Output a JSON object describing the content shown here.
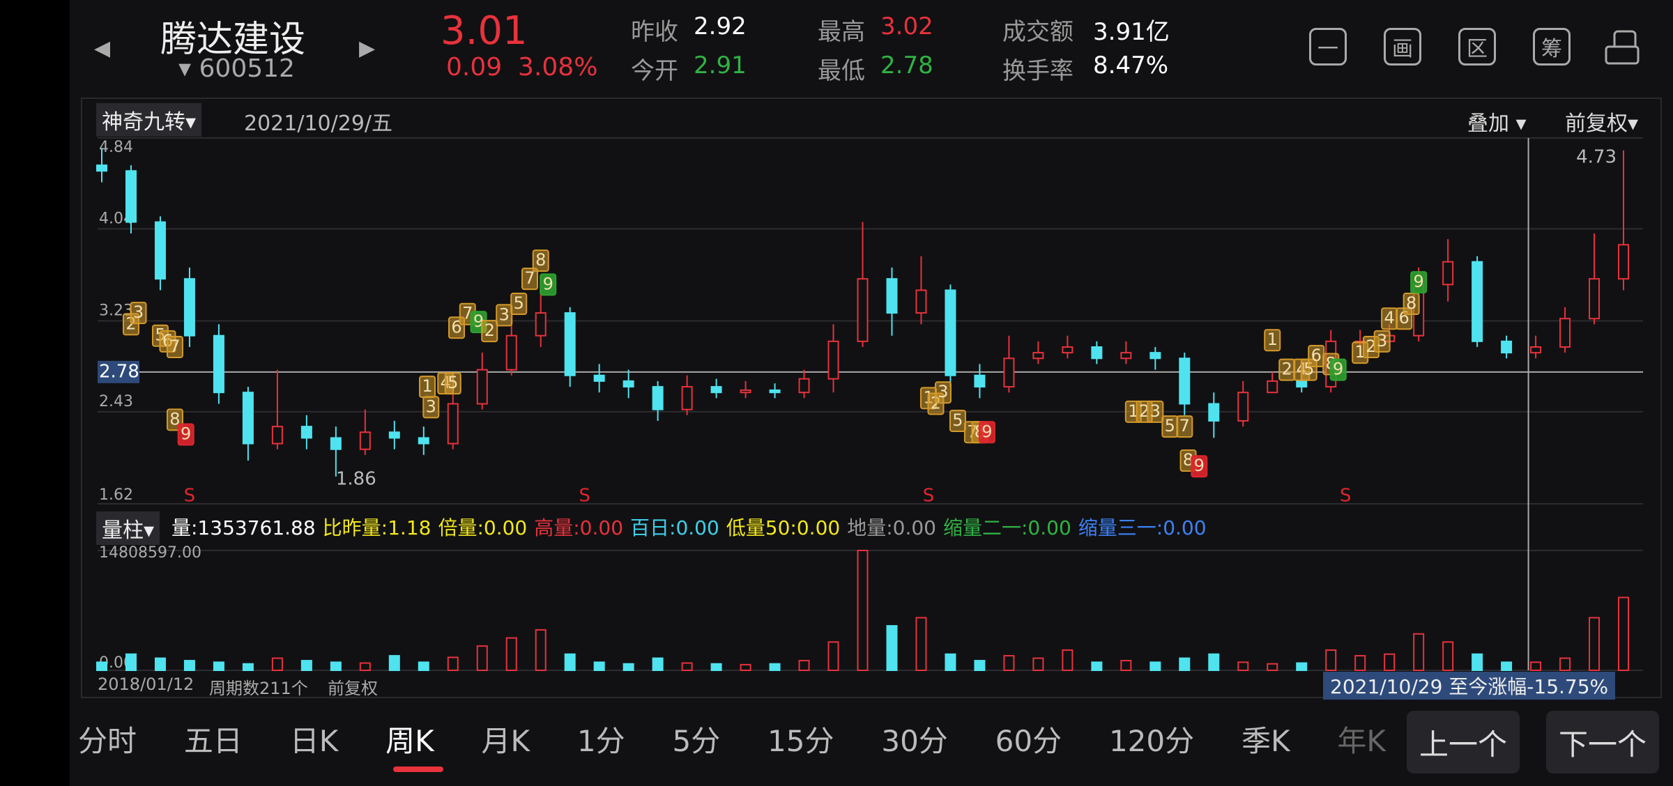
{
  "header": {
    "name": "腾达建设",
    "code": "600512",
    "price": "3.01",
    "change": "0.09",
    "change_pct": "3.08%",
    "stats": [
      {
        "label": "昨收",
        "value": "2.92",
        "color": "#ffffff"
      },
      {
        "label": "今开",
        "value": "2.91",
        "color": "#2fb344"
      },
      {
        "label": "最高",
        "value": "3.02",
        "color": "#e8323c"
      },
      {
        "label": "最低",
        "value": "2.78",
        "color": "#2fb344"
      },
      {
        "label": "成交额",
        "value": "3.91亿",
        "color": "#ffffff"
      },
      {
        "label": "换手率",
        "value": "8.47%",
        "color": "#ffffff"
      }
    ],
    "icons": [
      "一",
      "画",
      "区",
      "筹"
    ]
  },
  "toolbar": {
    "indicator": "神奇九转",
    "date": "2021/10/29/五",
    "overlay": "叠加",
    "adjust": "前复权"
  },
  "chart_data": [
    {
      "type": "candlestick",
      "up_color": "#e8323c",
      "down_color": "#4fe3ef",
      "xlim": [
        0,
        210
      ],
      "ylim": [
        1.62,
        4.84
      ],
      "yticks": [
        4.84,
        4.04,
        3.23,
        2.43,
        1.62
      ],
      "grid": true,
      "x": [
        0,
        4,
        8,
        12,
        16,
        20,
        24,
        28,
        32,
        36,
        40,
        44,
        48,
        52,
        56,
        60,
        64,
        68,
        72,
        76,
        80,
        84,
        88,
        92,
        96,
        100,
        104,
        108,
        112,
        116,
        120,
        124,
        128,
        132,
        136,
        140,
        144,
        148,
        152,
        156,
        160,
        164,
        168,
        172,
        176,
        180,
        184,
        188,
        192,
        196,
        200,
        204,
        208
      ],
      "open": [
        4.6,
        4.55,
        4.1,
        3.6,
        3.1,
        2.6,
        2.15,
        2.3,
        2.2,
        2.1,
        2.25,
        2.2,
        2.15,
        2.5,
        2.8,
        3.1,
        3.3,
        2.75,
        2.7,
        2.65,
        2.45,
        2.65,
        2.6,
        2.62,
        2.6,
        2.72,
        3.05,
        3.6,
        3.3,
        3.5,
        2.75,
        2.65,
        2.9,
        2.95,
        3.0,
        2.9,
        2.95,
        2.9,
        2.5,
        2.35,
        2.6,
        2.7,
        2.65,
        3.05,
        3.05,
        3.1,
        3.55,
        3.75,
        3.05,
        2.95,
        3.0,
        3.25,
        3.6
      ],
      "high": [
        4.75,
        4.6,
        4.15,
        3.7,
        3.2,
        2.65,
        2.8,
        2.4,
        2.3,
        2.45,
        2.35,
        2.3,
        2.6,
        2.95,
        3.25,
        3.5,
        3.35,
        2.85,
        2.8,
        2.7,
        2.75,
        2.72,
        2.7,
        2.68,
        2.8,
        3.2,
        4.1,
        3.7,
        3.8,
        3.55,
        2.85,
        3.1,
        3.05,
        3.1,
        3.05,
        3.05,
        3.0,
        2.95,
        2.6,
        2.7,
        2.78,
        2.75,
        3.15,
        3.15,
        3.2,
        3.7,
        3.95,
        3.8,
        3.1,
        3.1,
        3.35,
        4.0,
        4.73
      ],
      "low": [
        4.45,
        4.0,
        3.5,
        3.0,
        2.5,
        2.0,
        2.1,
        2.1,
        1.86,
        2.05,
        2.1,
        2.05,
        2.1,
        2.45,
        2.75,
        3.0,
        2.65,
        2.6,
        2.55,
        2.35,
        2.4,
        2.55,
        2.55,
        2.55,
        2.55,
        2.6,
        3.0,
        3.1,
        3.2,
        2.65,
        2.55,
        2.6,
        2.85,
        2.9,
        2.85,
        2.85,
        2.8,
        2.4,
        2.2,
        2.3,
        2.6,
        2.6,
        2.6,
        2.95,
        3.0,
        3.05,
        3.4,
        3.0,
        2.9,
        2.9,
        2.95,
        3.2,
        3.5
      ],
      "close": [
        4.55,
        4.1,
        3.6,
        3.1,
        2.6,
        2.15,
        2.3,
        2.2,
        2.1,
        2.25,
        2.2,
        2.15,
        2.5,
        2.8,
        3.1,
        3.3,
        2.75,
        2.7,
        2.65,
        2.45,
        2.65,
        2.6,
        2.62,
        2.6,
        2.72,
        3.05,
        3.6,
        3.3,
        3.5,
        2.75,
        2.65,
        2.9,
        2.95,
        3.0,
        2.9,
        2.95,
        2.9,
        2.5,
        2.35,
        2.6,
        2.7,
        2.65,
        3.05,
        3.05,
        3.1,
        3.55,
        3.75,
        3.05,
        2.95,
        3.0,
        3.25,
        3.6,
        3.9
      ],
      "crosshair": {
        "x": 195,
        "y": 2.78
      },
      "high_label": 4.73,
      "low_label": 1.86,
      "signals": [
        {
          "x": 12,
          "label": "S"
        },
        {
          "x": 66,
          "label": "S"
        },
        {
          "x": 113,
          "label": "S"
        },
        {
          "x": 170,
          "label": "S"
        }
      ],
      "td_color": "#d49a2a",
      "td_buy_color": "#2fa12f",
      "td_sell_color": "#e0262e",
      "td_marks": [
        {
          "x": 4,
          "y": 3.2,
          "label": "2"
        },
        {
          "x": 5,
          "y": 3.3,
          "label": "3"
        },
        {
          "x": 8,
          "y": 3.1,
          "label": "5"
        },
        {
          "x": 9,
          "y": 3.05,
          "label": "6"
        },
        {
          "x": 10,
          "y": 3.0,
          "label": "7"
        },
        {
          "x": 10,
          "y": 2.36,
          "label": "8"
        },
        {
          "x": 11.5,
          "y": 2.23,
          "label": "9",
          "kind": "sell"
        },
        {
          "x": 44.5,
          "y": 2.65,
          "label": "1"
        },
        {
          "x": 45,
          "y": 2.47,
          "label": "3"
        },
        {
          "x": 47,
          "y": 2.68,
          "label": "4"
        },
        {
          "x": 48,
          "y": 2.68,
          "label": "5"
        },
        {
          "x": 48.5,
          "y": 3.17,
          "label": "6"
        },
        {
          "x": 50,
          "y": 3.29,
          "label": "7"
        },
        {
          "x": 51.5,
          "y": 3.22,
          "label": "9",
          "kind": "buy"
        },
        {
          "x": 53,
          "y": 3.14,
          "label": "2"
        },
        {
          "x": 55,
          "y": 3.28,
          "label": "3"
        },
        {
          "x": 57,
          "y": 3.38,
          "label": "5"
        },
        {
          "x": 58.5,
          "y": 3.6,
          "label": "7"
        },
        {
          "x": 60,
          "y": 3.76,
          "label": "8"
        },
        {
          "x": 61,
          "y": 3.55,
          "label": "9",
          "kind": "buy"
        },
        {
          "x": 113,
          "y": 2.55,
          "label": "1"
        },
        {
          "x": 114,
          "y": 2.5,
          "label": "2"
        },
        {
          "x": 115,
          "y": 2.6,
          "label": "3"
        },
        {
          "x": 117,
          "y": 2.35,
          "label": "5"
        },
        {
          "x": 119,
          "y": 2.25,
          "label": "7"
        },
        {
          "x": 120,
          "y": 2.25,
          "label": "8"
        },
        {
          "x": 121,
          "y": 2.25,
          "label": "9",
          "kind": "sell"
        },
        {
          "x": 141,
          "y": 2.43,
          "label": "1"
        },
        {
          "x": 142.5,
          "y": 2.43,
          "label": "2"
        },
        {
          "x": 144,
          "y": 2.43,
          "label": "3"
        },
        {
          "x": 146,
          "y": 2.3,
          "label": "5"
        },
        {
          "x": 148,
          "y": 2.3,
          "label": "7"
        },
        {
          "x": 148.5,
          "y": 2.0,
          "label": "8"
        },
        {
          "x": 150,
          "y": 1.95,
          "label": "9",
          "kind": "sell"
        },
        {
          "x": 160,
          "y": 3.06,
          "label": "1"
        },
        {
          "x": 162,
          "y": 2.8,
          "label": "2"
        },
        {
          "x": 164,
          "y": 2.8,
          "label": "4"
        },
        {
          "x": 165,
          "y": 2.8,
          "label": "5"
        },
        {
          "x": 166,
          "y": 2.92,
          "label": "6"
        },
        {
          "x": 168,
          "y": 2.85,
          "label": "8"
        },
        {
          "x": 169,
          "y": 2.8,
          "label": "9",
          "kind": "buy"
        },
        {
          "x": 172,
          "y": 2.95,
          "label": "1"
        },
        {
          "x": 173.5,
          "y": 3.0,
          "label": "2"
        },
        {
          "x": 175,
          "y": 3.05,
          "label": "3"
        },
        {
          "x": 176,
          "y": 3.25,
          "label": "4"
        },
        {
          "x": 178,
          "y": 3.25,
          "label": "6"
        },
        {
          "x": 179,
          "y": 3.38,
          "label": "8"
        },
        {
          "x": 180,
          "y": 3.57,
          "label": "9",
          "kind": "buy"
        }
      ]
    },
    {
      "type": "bar",
      "name": "量柱",
      "ylim": [
        0,
        14808597
      ],
      "yticks": [
        {
          "value": 14808597,
          "label": "14808597.00"
        },
        {
          "value": 0,
          "label": "0.00"
        }
      ],
      "values": [
        1000000,
        2000000,
        1500000,
        1200000,
        1000000,
        800000,
        1500000,
        1200000,
        1000000,
        900000,
        1800000,
        1000000,
        1600000,
        3000000,
        4000000,
        5000000,
        2000000,
        1000000,
        800000,
        1500000,
        900000,
        800000,
        700000,
        800000,
        1200000,
        3500000,
        14808597,
        5500000,
        6500000,
        2000000,
        1200000,
        1800000,
        1500000,
        2500000,
        1000000,
        1200000,
        1000000,
        1500000,
        2000000,
        1000000,
        800000,
        900000,
        2500000,
        1800000,
        2000000,
        4500000,
        3500000,
        2000000,
        1000000,
        1000000,
        1500000,
        6500000,
        9000000
      ],
      "indicators": [
        {
          "text": "量:1353761.88",
          "color": "#ffffff"
        },
        {
          "text": "比昨量:1.18",
          "color": "#f2e81c"
        },
        {
          "text": "倍量:0.00",
          "color": "#f2e81c"
        },
        {
          "text": "高量:0.00",
          "color": "#e8323c"
        },
        {
          "text": "百日:0.00",
          "color": "#3fd0e8"
        },
        {
          "text": "低量50:0.00",
          "color": "#f2e81c"
        },
        {
          "text": "地量:0.00",
          "color": "#999999"
        },
        {
          "text": "缩量二一:0.00",
          "color": "#2fb344"
        },
        {
          "text": "缩量三一:0.00",
          "color": "#3b82f6"
        }
      ]
    }
  ],
  "footer": {
    "start": "2018/01/12",
    "periods": "周期数211个",
    "adjust": "前复权",
    "range_note": "2021/10/29 至今涨幅-15.75%"
  },
  "tabs": [
    "分时",
    "五日",
    "日K",
    "周K",
    "月K",
    "1分",
    "5分",
    "15分",
    "30分",
    "60分",
    "120分",
    "季K",
    "年K"
  ],
  "selected_tab": 3,
  "buttons": [
    "上一个",
    "下一个"
  ]
}
